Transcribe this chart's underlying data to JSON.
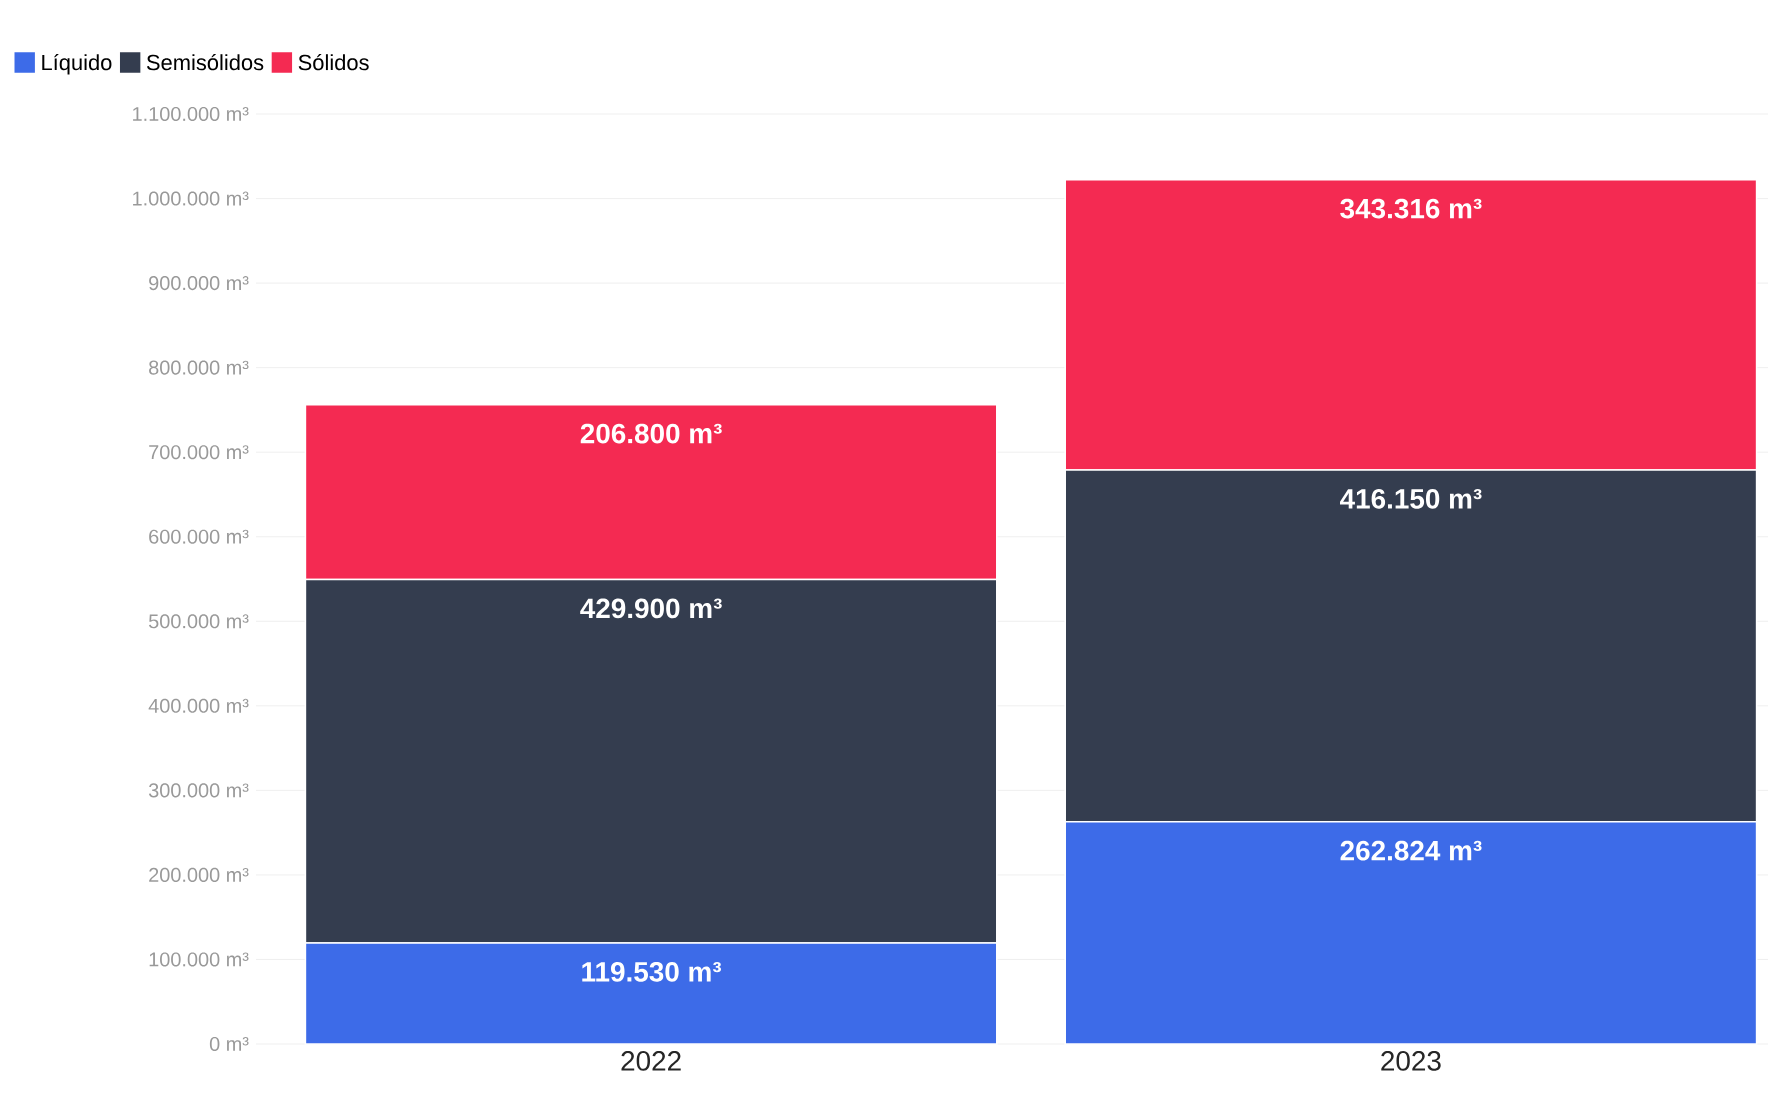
{
  "chart_data": {
    "type": "bar",
    "stacked": true,
    "categories": [
      "2022",
      "2023"
    ],
    "series": [
      {
        "name": "Líquido",
        "color": "#3d6be8",
        "values": [
          119530,
          262824
        ],
        "value_labels": [
          "119.530 m³",
          "262.824 m³"
        ]
      },
      {
        "name": "Semisólidos",
        "color": "#343d4f",
        "values": [
          429900,
          416150
        ],
        "value_labels": [
          "429.900 m³",
          "416.150 m³"
        ]
      },
      {
        "name": "Sólidos",
        "color": "#f42a52",
        "values": [
          206800,
          343316
        ],
        "value_labels": [
          "206.800 m³",
          "343.316 m³"
        ]
      }
    ],
    "ylim": [
      0,
      1100000
    ],
    "yticks": [
      {
        "value": 0,
        "label": "0 m³"
      },
      {
        "value": 100000,
        "label": "100.000 m³"
      },
      {
        "value": 200000,
        "label": "200.000 m³"
      },
      {
        "value": 300000,
        "label": "300.000 m³"
      },
      {
        "value": 400000,
        "label": "400.000 m³"
      },
      {
        "value": 500000,
        "label": "500.000 m³"
      },
      {
        "value": 600000,
        "label": "600.000 m³"
      },
      {
        "value": 700000,
        "label": "700.000 m³"
      },
      {
        "value": 800000,
        "label": "800.000 m³"
      },
      {
        "value": 900000,
        "label": "900.000 m³"
      },
      {
        "value": 1000000,
        "label": "1.000.000 m³"
      },
      {
        "value": 1100000,
        "label": "1.100.000 m³"
      }
    ],
    "grid": "y",
    "legend": "top left"
  }
}
